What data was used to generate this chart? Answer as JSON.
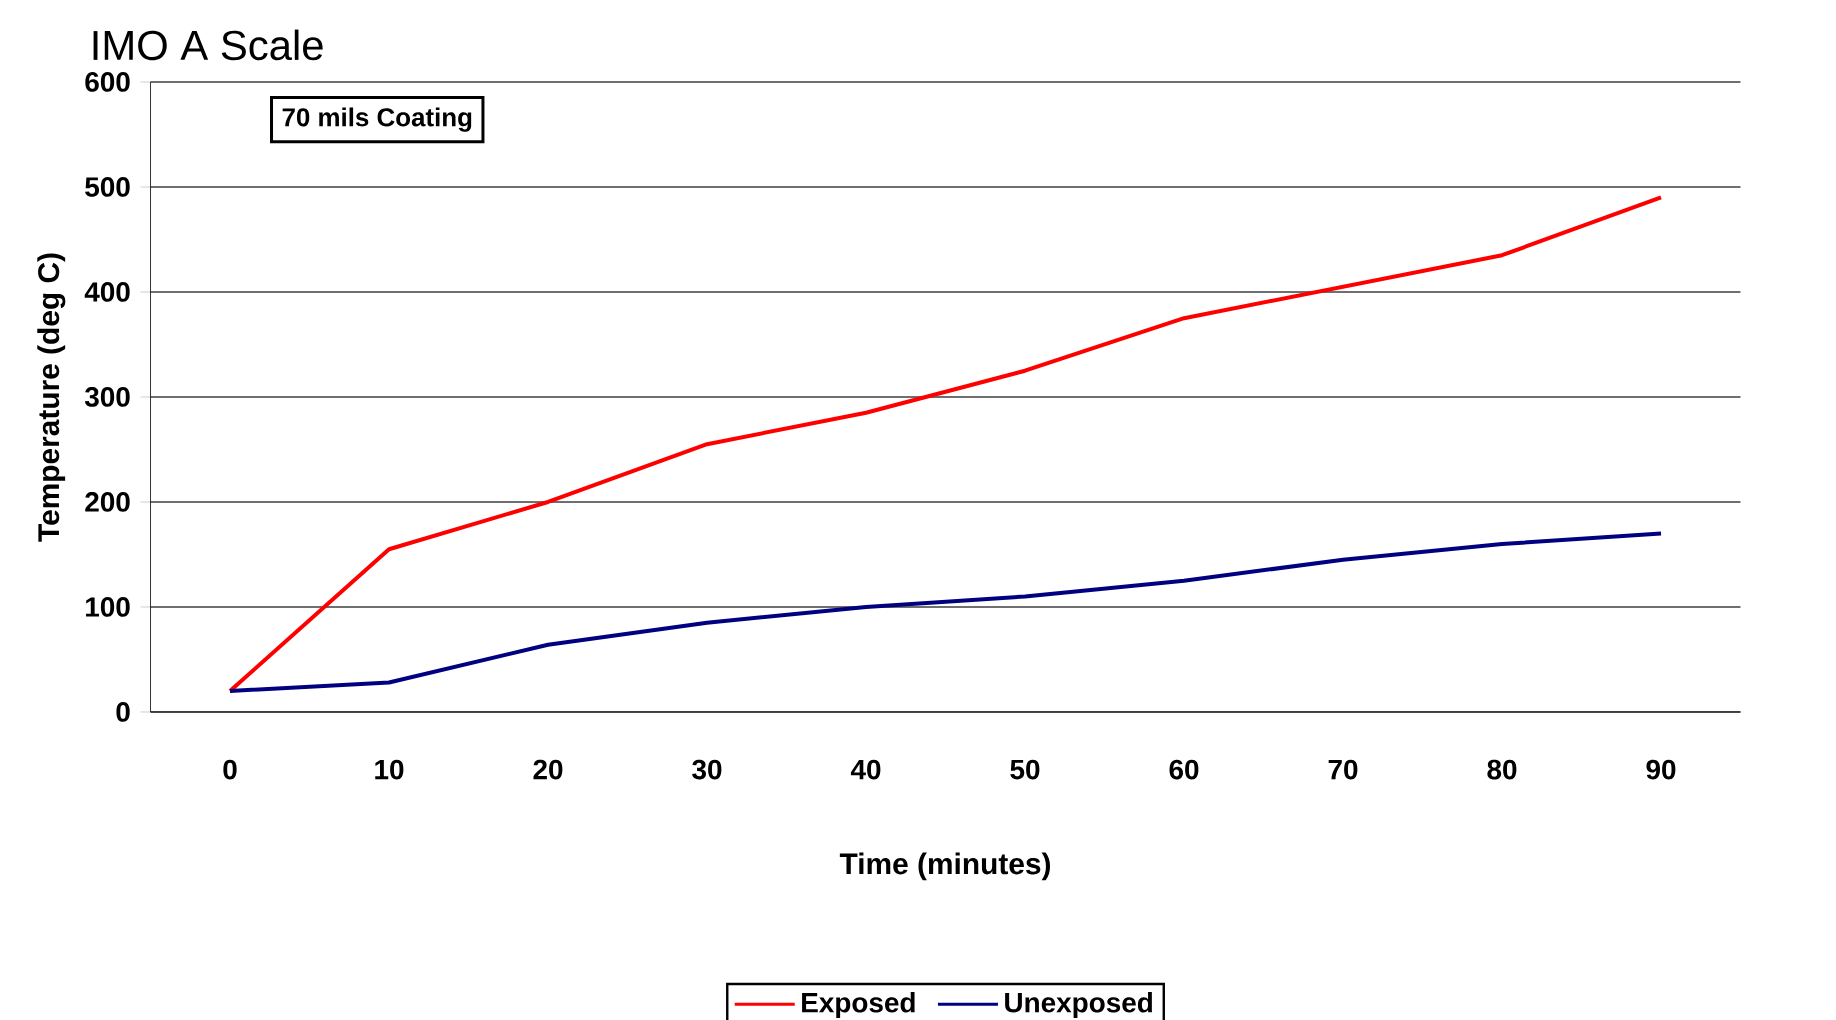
{
  "chart_data": {
    "type": "line",
    "title": "IMO A Scale",
    "xlabel": "Time (minutes)",
    "ylabel": "Temperature (deg C)",
    "annotations": [
      "70 mils Coating"
    ],
    "categories": [
      "0",
      "10",
      "20",
      "30",
      "40",
      "50",
      "60",
      "70",
      "80",
      "90"
    ],
    "series": [
      {
        "name": "Exposed",
        "color": "#ff0000",
        "values": [
          20,
          155,
          200,
          255,
          285,
          325,
          375,
          405,
          435,
          490
        ]
      },
      {
        "name": "Unexposed",
        "color": "#000080",
        "values": [
          20,
          28,
          64,
          85,
          100,
          110,
          125,
          145,
          160,
          170
        ]
      }
    ],
    "ylim": [
      0,
      600
    ],
    "yticks": [
      0,
      100,
      200,
      300,
      400,
      500,
      600
    ],
    "grid": "y",
    "legend": "bottom",
    "marker": "none",
    "line_style": "solid"
  }
}
